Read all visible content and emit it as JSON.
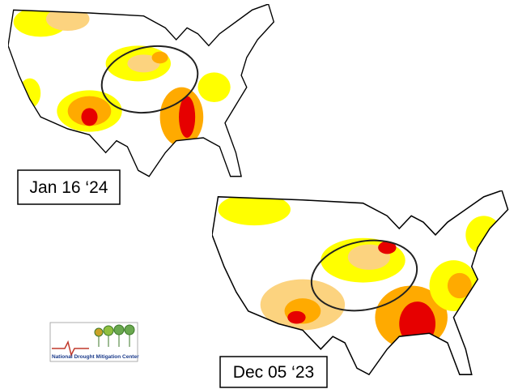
{
  "maps": [
    {
      "label": "Jan 16 ‘24"
    },
    {
      "label": "Dec 05 ‘23"
    }
  ],
  "logo": {
    "text": "National Drought Mitigation Center"
  }
}
